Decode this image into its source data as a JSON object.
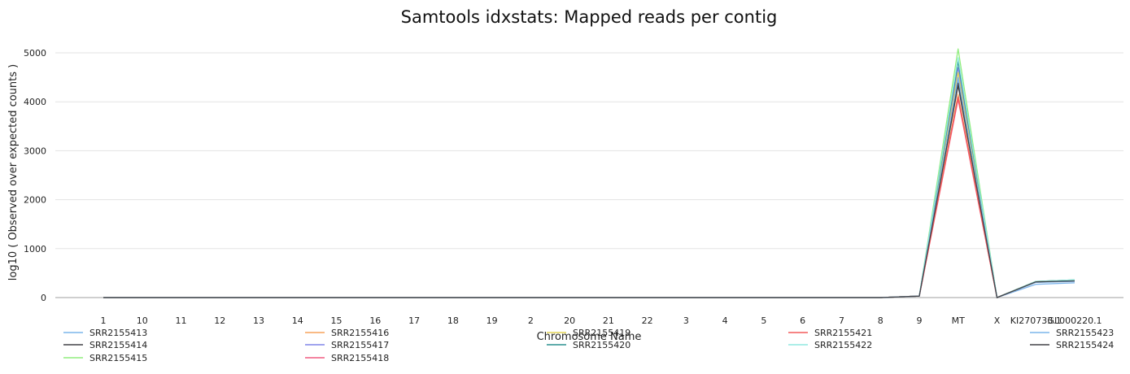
{
  "chart_data": {
    "type": "line",
    "title": "Samtools idxstats: Mapped reads per contig",
    "xlabel": "Chromosome Name",
    "ylabel": "log10 ( Observed over expected counts )",
    "ylim": [
      0,
      5300
    ],
    "yticks": [
      0,
      1000,
      2000,
      3000,
      4000,
      5000
    ],
    "grid": true,
    "legend_position": "bottom",
    "categories": [
      "1",
      "10",
      "11",
      "12",
      "13",
      "14",
      "15",
      "16",
      "17",
      "18",
      "19",
      "2",
      "20",
      "21",
      "22",
      "3",
      "4",
      "5",
      "6",
      "7",
      "8",
      "9",
      "MT",
      "X",
      "KI270733.1",
      "GL000220.1"
    ],
    "series": [
      {
        "name": "SRR2155413",
        "color": "#7cb5ec",
        "values": [
          0,
          0,
          0,
          0,
          0,
          0,
          0,
          0,
          0,
          0,
          0,
          0,
          0,
          0,
          0,
          0,
          0,
          0,
          0,
          0,
          0,
          30,
          4450,
          0,
          270,
          300
        ]
      },
      {
        "name": "SRR2155414",
        "color": "#434348",
        "values": [
          0,
          0,
          0,
          0,
          0,
          0,
          0,
          0,
          0,
          0,
          0,
          0,
          0,
          0,
          0,
          0,
          0,
          0,
          0,
          0,
          0,
          30,
          4380,
          0,
          320,
          340
        ]
      },
      {
        "name": "SRR2155415",
        "color": "#90ed7d",
        "values": [
          0,
          0,
          0,
          0,
          0,
          0,
          0,
          0,
          0,
          0,
          0,
          0,
          0,
          0,
          0,
          0,
          0,
          0,
          0,
          0,
          0,
          30,
          5080,
          0,
          330,
          360
        ]
      },
      {
        "name": "SRR2155416",
        "color": "#f7a35c",
        "values": [
          0,
          0,
          0,
          0,
          0,
          0,
          0,
          0,
          0,
          0,
          0,
          0,
          0,
          0,
          0,
          0,
          0,
          0,
          0,
          0,
          0,
          30,
          4150,
          0,
          310,
          340
        ]
      },
      {
        "name": "SRR2155417",
        "color": "#8085e9",
        "values": [
          0,
          0,
          0,
          0,
          0,
          0,
          0,
          0,
          0,
          0,
          0,
          0,
          0,
          0,
          0,
          0,
          0,
          0,
          0,
          0,
          0,
          30,
          4700,
          0,
          320,
          350
        ]
      },
      {
        "name": "SRR2155418",
        "color": "#f15c80",
        "values": [
          0,
          0,
          0,
          0,
          0,
          0,
          0,
          0,
          0,
          0,
          0,
          0,
          0,
          0,
          0,
          0,
          0,
          0,
          0,
          0,
          0,
          30,
          4050,
          0,
          320,
          340
        ]
      },
      {
        "name": "SRR2155419",
        "color": "#e4d354",
        "values": [
          0,
          0,
          0,
          0,
          0,
          0,
          0,
          0,
          0,
          0,
          0,
          0,
          0,
          0,
          0,
          0,
          0,
          0,
          0,
          0,
          0,
          30,
          4600,
          0,
          330,
          350
        ]
      },
      {
        "name": "SRR2155420",
        "color": "#2b908f",
        "values": [
          0,
          0,
          0,
          0,
          0,
          0,
          0,
          0,
          0,
          0,
          0,
          0,
          0,
          0,
          0,
          0,
          0,
          0,
          0,
          0,
          0,
          30,
          4820,
          0,
          330,
          360
        ]
      },
      {
        "name": "SRR2155421",
        "color": "#f45b5b",
        "values": [
          0,
          0,
          0,
          0,
          0,
          0,
          0,
          0,
          0,
          0,
          0,
          0,
          0,
          0,
          0,
          0,
          0,
          0,
          0,
          0,
          0,
          30,
          4100,
          0,
          320,
          340
        ]
      },
      {
        "name": "SRR2155422",
        "color": "#91e8e1",
        "values": [
          0,
          0,
          0,
          0,
          0,
          0,
          0,
          0,
          0,
          0,
          0,
          0,
          0,
          0,
          0,
          0,
          0,
          0,
          0,
          0,
          0,
          30,
          4900,
          0,
          330,
          360
        ]
      },
      {
        "name": "SRR2155423",
        "color": "#7cb5ec",
        "values": [
          0,
          0,
          0,
          0,
          0,
          0,
          0,
          0,
          0,
          0,
          0,
          0,
          0,
          0,
          0,
          0,
          0,
          0,
          0,
          0,
          0,
          30,
          4500,
          0,
          310,
          330
        ]
      },
      {
        "name": "SRR2155424",
        "color": "#434348",
        "values": [
          0,
          0,
          0,
          0,
          0,
          0,
          0,
          0,
          0,
          0,
          0,
          0,
          0,
          0,
          0,
          0,
          0,
          0,
          0,
          0,
          0,
          30,
          4330,
          0,
          320,
          340
        ]
      }
    ]
  }
}
